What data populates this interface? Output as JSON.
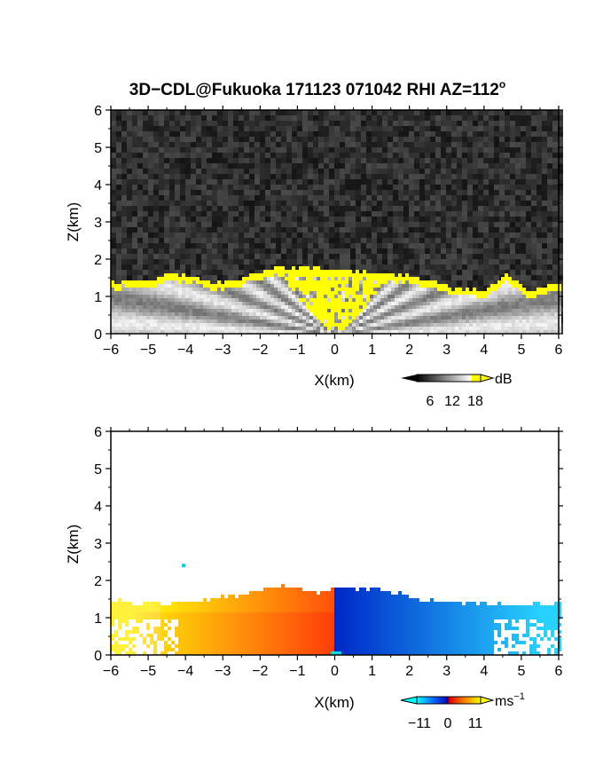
{
  "chart_data": [
    {
      "type": "heatmap",
      "panel": "reflectivity",
      "title": "3D−CDL@Fukuoka 171123 071042 RHI AZ=112",
      "title_sup": "o",
      "xlabel": "X(km)",
      "ylabel": "Z(km)",
      "xlim": [
        -6,
        6
      ],
      "ylim": [
        0,
        6
      ],
      "xticks": [
        "−6",
        "−5",
        "−4",
        "−3",
        "−2",
        "−1",
        "0",
        "1",
        "2",
        "3",
        "4",
        "5",
        "6"
      ],
      "yticks": [
        "0",
        "1",
        "2",
        "3",
        "4",
        "5",
        "6"
      ],
      "colorbar": {
        "unit": "dB",
        "ticks": [
          "6",
          "12",
          "18"
        ],
        "range": [
          0,
          21
        ],
        "colors": [
          "#000000",
          "#ffffff",
          "#ffff00"
        ]
      },
      "echo_top_km": [
        {
          "x": -6.0,
          "z": 1.45
        },
        {
          "x": -5.0,
          "z": 1.5
        },
        {
          "x": -4.3,
          "z": 1.65
        },
        {
          "x": -3.0,
          "z": 1.4
        },
        {
          "x": -2.0,
          "z": 1.7
        },
        {
          "x": -1.3,
          "z": 1.85
        },
        {
          "x": -0.5,
          "z": 1.8
        },
        {
          "x": 0.0,
          "z": 1.75
        },
        {
          "x": 1.0,
          "z": 1.7
        },
        {
          "x": 2.0,
          "z": 1.6
        },
        {
          "x": 3.0,
          "z": 1.3
        },
        {
          "x": 4.0,
          "z": 1.2
        },
        {
          "x": 4.6,
          "z": 1.65
        },
        {
          "x": 5.2,
          "z": 1.2
        },
        {
          "x": 6.0,
          "z": 1.4
        }
      ]
    },
    {
      "type": "heatmap",
      "panel": "doppler_velocity",
      "xlabel": "X(km)",
      "ylabel": "Z(km)",
      "xlim": [
        -6,
        6
      ],
      "ylim": [
        0,
        6
      ],
      "xticks": [
        "−6",
        "−5",
        "−4",
        "−3",
        "−2",
        "−1",
        "0",
        "1",
        "2",
        "3",
        "4",
        "5",
        "6"
      ],
      "yticks": [
        "0",
        "1",
        "2",
        "3",
        "4",
        "5",
        "6"
      ],
      "colorbar": {
        "unit": "ms",
        "unit_sup": "−1",
        "ticks": [
          "−11",
          "0",
          "11"
        ],
        "range": [
          -14,
          14
        ],
        "colors": [
          "#00ffff",
          "#0060ff",
          "#0000c0",
          "#ff0000",
          "#ff8000",
          "#ffff00"
        ]
      },
      "echo_top_km": [
        {
          "x": -6.0,
          "z": 1.5
        },
        {
          "x": -5.0,
          "z": 1.45
        },
        {
          "x": -4.0,
          "z": 1.45
        },
        {
          "x": -2.5,
          "z": 1.65
        },
        {
          "x": -1.5,
          "z": 1.9
        },
        {
          "x": -0.5,
          "z": 1.75
        },
        {
          "x": 0.0,
          "z": 1.8
        },
        {
          "x": 1.0,
          "z": 1.85
        },
        {
          "x": 2.0,
          "z": 1.6
        },
        {
          "x": 3.0,
          "z": 1.45
        },
        {
          "x": 4.5,
          "z": 1.4
        },
        {
          "x": 6.0,
          "z": 1.45
        }
      ],
      "outliers_km": [
        {
          "x": -4.05,
          "z": 2.4
        }
      ]
    }
  ]
}
